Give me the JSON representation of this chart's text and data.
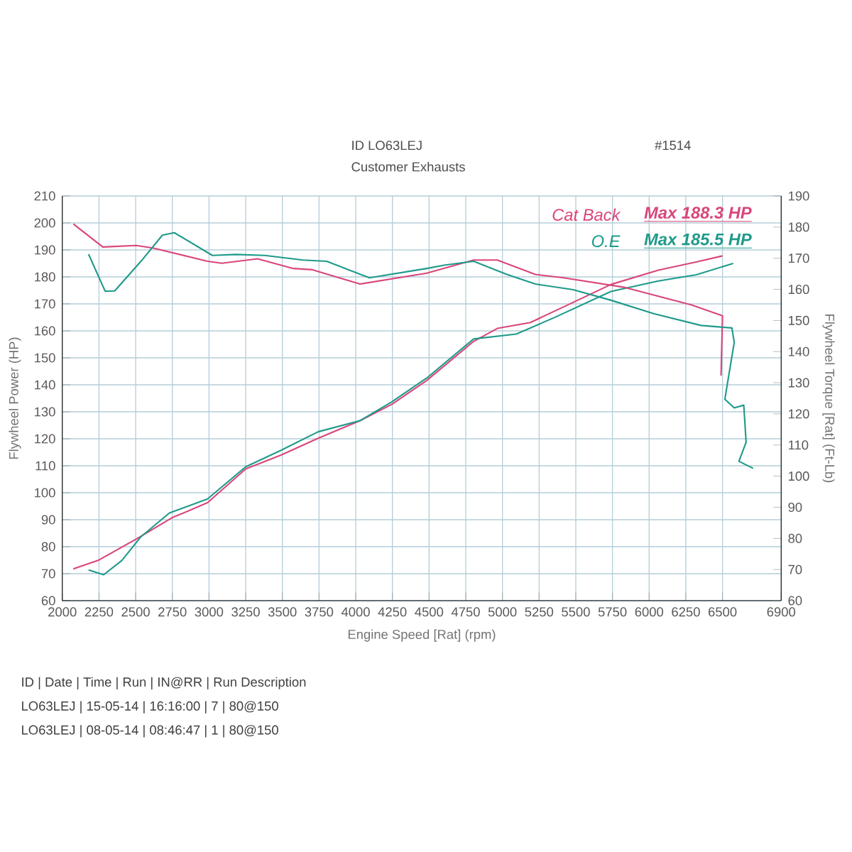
{
  "chart_data": {
    "type": "line",
    "xlabel": "Engine Speed [Rat] (rpm)",
    "ylabel": "Flywheel Power (HP)",
    "y2label": "Flywheel Torque [Rat] (Ft-Lb)",
    "xlim": [
      2000,
      6900
    ],
    "xticks": [
      2000,
      2250,
      2500,
      2750,
      3000,
      3250,
      3500,
      3750,
      4000,
      4250,
      4500,
      4750,
      5000,
      5250,
      5500,
      5750,
      6000,
      6250,
      6500,
      6900
    ],
    "ylim": [
      60,
      210
    ],
    "yticks": [
      60,
      70,
      80,
      90,
      100,
      110,
      120,
      130,
      140,
      150,
      160,
      170,
      180,
      190,
      200,
      210
    ],
    "y2lim": [
      60,
      190
    ],
    "y2ticks": [
      60,
      70,
      80,
      90,
      100,
      110,
      120,
      130,
      140,
      150,
      160,
      170,
      180,
      190
    ],
    "grid": true,
    "legend": "top right",
    "marker": "none",
    "line_style": "solid",
    "series": [
      {
        "name": "Cat Back",
        "color": "#d9467a",
        "x": [
          2075,
          2244,
          2503,
          2747,
          2990,
          3250,
          3493,
          3744,
          4029,
          4247,
          4484,
          4804,
          4965,
          5191,
          5449,
          5740,
          6063,
          6321,
          6500
        ],
        "values": [
          71.8,
          74.9,
          82.8,
          90.7,
          96.3,
          108.8,
          114.0,
          120.2,
          126.7,
          132.8,
          141.6,
          156.1,
          160.9,
          163.1,
          169.7,
          177.2,
          182.5,
          185.5,
          187.8
        ]
      },
      {
        "name": "O.E",
        "color": "#1f9a8a",
        "x": [
          2179,
          2282,
          2406,
          2536,
          2730,
          2990,
          3250,
          3493,
          3744,
          4029,
          4247,
          4484,
          4804,
          5094,
          5353,
          5740,
          6063,
          6321,
          6573
        ],
        "values": [
          71.4,
          69.6,
          74.9,
          83.7,
          92.5,
          97.7,
          109.6,
          115.8,
          122.6,
          126.7,
          133.7,
          142.5,
          157.0,
          158.8,
          164.9,
          174.6,
          178.5,
          180.8,
          185.0
        ]
      },
      {
        "color": "#d9467a",
        "axis": "y2",
        "x": [
          2075,
          2276,
          2503,
          2617,
          2990,
          3088,
          3331,
          3575,
          3705,
          4029,
          4484,
          4804,
          4965,
          5224,
          5417,
          5837,
          6289,
          6500,
          6490
        ],
        "values": [
          181.0,
          173.6,
          174.1,
          173.3,
          169.0,
          168.4,
          169.8,
          166.7,
          166.3,
          161.7,
          165.2,
          169.4,
          169.4,
          164.8,
          163.7,
          160.6,
          155.0,
          151.5,
          132.3
        ]
      },
      {
        "color": "#1f9a8a",
        "axis": "y2",
        "x": [
          2179,
          2292,
          2357,
          2536,
          2682,
          2763,
          3023,
          3185,
          3380,
          3640,
          3802,
          4094,
          4484,
          4610,
          4804,
          5030,
          5224,
          5482,
          5740,
          6031,
          6354,
          6564,
          6580,
          6516,
          6580,
          6645,
          6661,
          6612,
          6645,
          6709
        ],
        "values": [
          171.3,
          159.4,
          159.5,
          169.0,
          177.4,
          178.2,
          170.9,
          171.2,
          170.9,
          169.4,
          169.0,
          163.7,
          166.7,
          167.8,
          169.0,
          164.8,
          161.7,
          159.9,
          156.5,
          152.2,
          148.4,
          147.6,
          143.0,
          124.7,
          121.9,
          122.8,
          110.9,
          104.8,
          104.0,
          102.5
        ]
      }
    ],
    "annotations": [
      "Max 188.3 HP",
      "Max 185.5 HP",
      "ID LO63LEJ",
      "Customer Exhausts",
      "#1514",
      "ID | Date | Time | Run | IN@RR | Run Description",
      "LO63LEJ | 15-05-14 | 16:16:00 | 7 | 80@150",
      "LO63LEJ | 08-05-14 | 08:46:47 | 1 | 80@150"
    ]
  }
}
